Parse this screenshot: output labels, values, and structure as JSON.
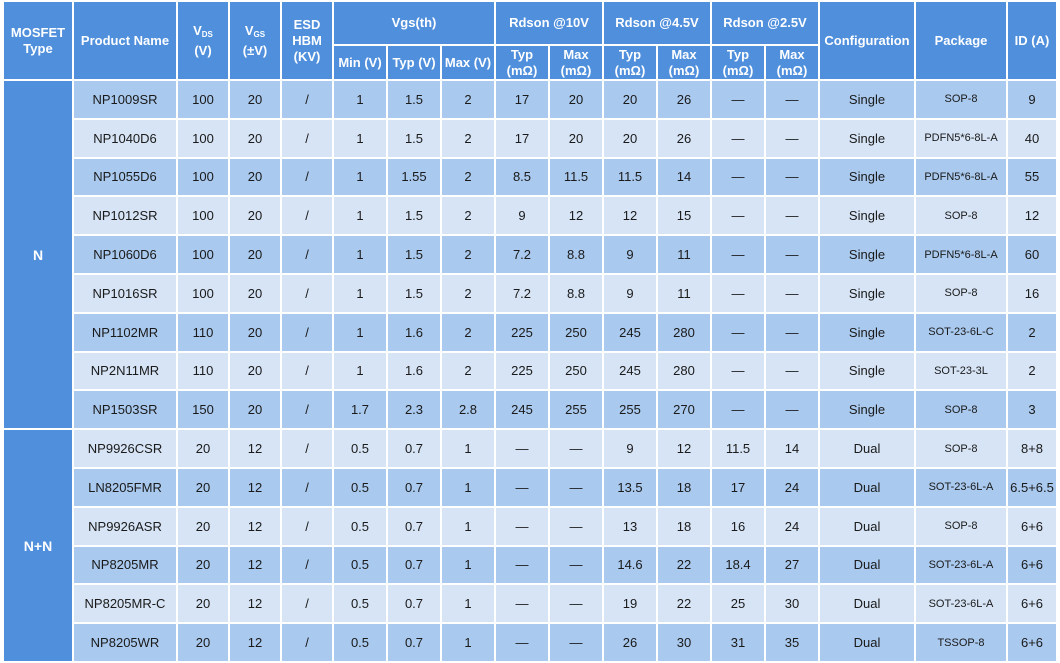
{
  "headers": {
    "mosfet_type": "MOSFET Type",
    "product_name": "Product Name",
    "vds_main": "V",
    "vds_sub": "DS",
    "vds_unit": "(V)",
    "vgs_main": "V",
    "vgs_sub": "GS",
    "vgs_unit": "(±V)",
    "esd": "ESD HBM (KV)",
    "vgsth": "Vgs(th)",
    "rds10": "Rdson @10V",
    "rds45": "Rdson @4.5V",
    "rds25": "Rdson @2.5V",
    "configuration": "Configuration",
    "package": "Package",
    "id": "ID (A)",
    "sub": {
      "vth_min": "Min (V)",
      "vth_typ": "Typ (V)",
      "vth_max": "Max (V)",
      "r10_typ": "Typ (mΩ)",
      "r10_max": "Max (mΩ)",
      "r45_typ": "Typ (mΩ)",
      "r45_max": "Max (mΩ)",
      "r25_typ": "Typ (mΩ)",
      "r25_max": "Max (mΩ)"
    }
  },
  "groups": [
    {
      "type": "N",
      "rows": [
        [
          "NP1009SR",
          "100",
          "20",
          "/",
          "1",
          "1.5",
          "2",
          "17",
          "20",
          "20",
          "26",
          "—",
          "—",
          "Single",
          "SOP-8",
          "9"
        ],
        [
          "NP1040D6",
          "100",
          "20",
          "/",
          "1",
          "1.5",
          "2",
          "17",
          "20",
          "20",
          "26",
          "—",
          "—",
          "Single",
          "PDFN5*6-8L-A",
          "40"
        ],
        [
          "NP1055D6",
          "100",
          "20",
          "/",
          "1",
          "1.55",
          "2",
          "8.5",
          "11.5",
          "11.5",
          "14",
          "—",
          "—",
          "Single",
          "PDFN5*6-8L-A",
          "55"
        ],
        [
          "NP1012SR",
          "100",
          "20",
          "/",
          "1",
          "1.5",
          "2",
          "9",
          "12",
          "12",
          "15",
          "—",
          "—",
          "Single",
          "SOP-8",
          "12"
        ],
        [
          "NP1060D6",
          "100",
          "20",
          "/",
          "1",
          "1.5",
          "2",
          "7.2",
          "8.8",
          "9",
          "11",
          "—",
          "—",
          "Single",
          "PDFN5*6-8L-A",
          "60"
        ],
        [
          "NP1016SR",
          "100",
          "20",
          "/",
          "1",
          "1.5",
          "2",
          "7.2",
          "8.8",
          "9",
          "11",
          "—",
          "—",
          "Single",
          "SOP-8",
          "16"
        ],
        [
          "NP1102MR",
          "110",
          "20",
          "/",
          "1",
          "1.6",
          "2",
          "225",
          "250",
          "245",
          "280",
          "—",
          "—",
          "Single",
          "SOT-23-6L-C",
          "2"
        ],
        [
          "NP2N11MR",
          "110",
          "20",
          "/",
          "1",
          "1.6",
          "2",
          "225",
          "250",
          "245",
          "280",
          "—",
          "—",
          "Single",
          "SOT-23-3L",
          "2"
        ],
        [
          "NP1503SR",
          "150",
          "20",
          "/",
          "1.7",
          "2.3",
          "2.8",
          "245",
          "255",
          "255",
          "270",
          "—",
          "—",
          "Single",
          "SOP-8",
          "3"
        ]
      ]
    },
    {
      "type": "N+N",
      "rows": [
        [
          "NP9926CSR",
          "20",
          "12",
          "/",
          "0.5",
          "0.7",
          "1",
          "—",
          "—",
          "9",
          "12",
          "11.5",
          "14",
          "Dual",
          "SOP-8",
          "8+8"
        ],
        [
          "LN8205FMR",
          "20",
          "12",
          "/",
          "0.5",
          "0.7",
          "1",
          "—",
          "—",
          "13.5",
          "18",
          "17",
          "24",
          "Dual",
          "SOT-23-6L-A",
          "6.5+6.5"
        ],
        [
          "NP9926ASR",
          "20",
          "12",
          "/",
          "0.5",
          "0.7",
          "1",
          "—",
          "—",
          "13",
          "18",
          "16",
          "24",
          "Dual",
          "SOP-8",
          "6+6"
        ],
        [
          "NP8205MR",
          "20",
          "12",
          "/",
          "0.5",
          "0.7",
          "1",
          "—",
          "—",
          "14.6",
          "22",
          "18.4",
          "27",
          "Dual",
          "SOT-23-6L-A",
          "6+6"
        ],
        [
          "NP8205MR-C",
          "20",
          "12",
          "/",
          "0.5",
          "0.7",
          "1",
          "—",
          "—",
          "19",
          "22",
          "25",
          "30",
          "Dual",
          "SOT-23-6L-A",
          "6+6"
        ],
        [
          "NP8205WR",
          "20",
          "12",
          "/",
          "0.5",
          "0.7",
          "1",
          "—",
          "—",
          "26",
          "30",
          "31",
          "35",
          "Dual",
          "TSSOP-8",
          "6+6"
        ]
      ]
    }
  ]
}
